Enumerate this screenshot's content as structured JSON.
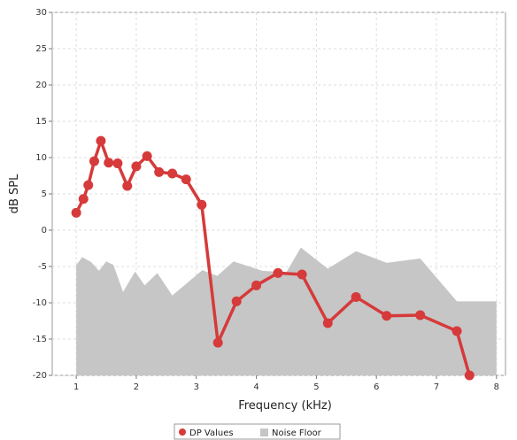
{
  "chart_data": {
    "type": "line",
    "xlabel": "Frequency (kHz)",
    "ylabel": "dB SPL",
    "xlim": [
      0.6,
      8.15
    ],
    "ylim": [
      -20,
      30
    ],
    "xticks": [
      1,
      2,
      3,
      4,
      5,
      6,
      7,
      8
    ],
    "yticks": [
      30,
      25,
      20,
      15,
      10,
      5,
      0,
      -5,
      -10,
      -15,
      -20
    ],
    "grid": true,
    "legend_position": "bottom-center",
    "series": [
      {
        "name": "DP Values",
        "type": "line",
        "color": "#d63a3a",
        "x": [
          1.0,
          1.12,
          1.2,
          1.3,
          1.41,
          1.54,
          1.69,
          1.85,
          2.0,
          2.18,
          2.38,
          2.6,
          2.83,
          3.09,
          3.36,
          3.67,
          4.0,
          4.36,
          4.76,
          5.19,
          5.66,
          6.17,
          6.73,
          7.34,
          7.55
        ],
        "y": [
          2.4,
          4.3,
          6.2,
          9.5,
          12.3,
          9.3,
          9.2,
          6.1,
          8.8,
          10.2,
          8.0,
          7.8,
          7.0,
          3.5,
          -15.5,
          -9.8,
          -7.6,
          -5.9,
          -6.1,
          -12.8,
          -9.2,
          -11.8,
          -11.7,
          -13.9,
          -20.0
        ]
      },
      {
        "name": "Noise Floor",
        "type": "area",
        "color": "#c6c6c6",
        "x": [
          1.0,
          1.1,
          1.25,
          1.38,
          1.5,
          1.62,
          1.78,
          1.98,
          2.14,
          2.35,
          2.6,
          3.1,
          3.35,
          3.62,
          4.1,
          4.5,
          4.74,
          5.19,
          5.66,
          6.17,
          6.73,
          7.34,
          8.0
        ],
        "y": [
          -4.8,
          -3.7,
          -4.4,
          -5.6,
          -4.3,
          -4.8,
          -8.5,
          -5.7,
          -7.6,
          -5.9,
          -9.0,
          -5.5,
          -6.3,
          -4.3,
          -5.6,
          -5.8,
          -2.4,
          -5.3,
          -2.9,
          -4.5,
          -3.9,
          -9.8,
          -9.8
        ]
      }
    ]
  }
}
